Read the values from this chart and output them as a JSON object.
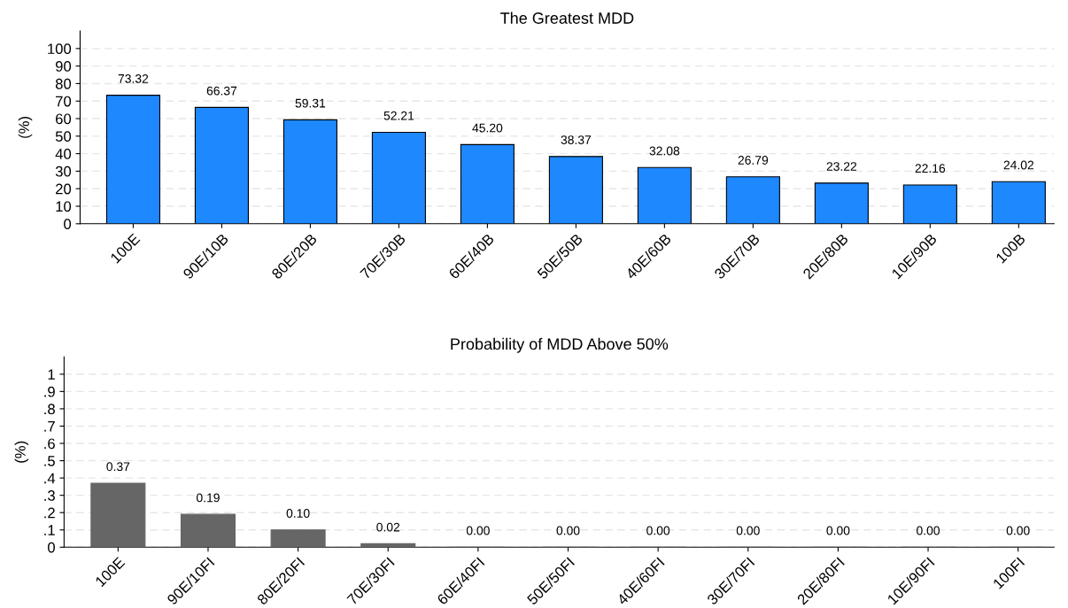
{
  "chart_data": [
    {
      "type": "bar",
      "title": "The Greatest MDD",
      "ylabel": "(%)",
      "categories": [
        "100E",
        "90E/10B",
        "80E/20B",
        "70E/30B",
        "60E/40B",
        "50E/50B",
        "40E/60B",
        "30E/70B",
        "20E/80B",
        "10E/90B",
        "100B"
      ],
      "values": [
        73.32,
        66.37,
        59.31,
        52.21,
        45.2,
        38.37,
        32.08,
        26.79,
        23.22,
        22.16,
        24.02
      ],
      "value_labels": [
        "73.32",
        "66.37",
        "59.31",
        "52.21",
        "45.20",
        "38.37",
        "32.08",
        "26.79",
        "23.22",
        "22.16",
        "24.02"
      ],
      "color": "#1e88ff",
      "ylim": [
        0,
        110
      ],
      "yticks": [
        0,
        10,
        20,
        30,
        40,
        50,
        60,
        70,
        80,
        90,
        100
      ],
      "grid": "y"
    },
    {
      "type": "bar",
      "title": "Probability of MDD Above 50%",
      "ylabel": "(%)",
      "categories": [
        "100E",
        "90E/10FI",
        "80E/20FI",
        "70E/30FI",
        "60E/40FI",
        "50E/50FI",
        "40E/60FI",
        "30E/70FI",
        "20E/80FI",
        "10E/90FI",
        "100FI"
      ],
      "values": [
        0.37,
        0.19,
        0.1,
        0.02,
        0,
        0,
        0,
        0,
        0,
        0,
        0
      ],
      "value_labels": [
        "0.37",
        "0.19",
        "0.10",
        "0.02",
        "0.00",
        "0.00",
        "0.00",
        "0.00",
        "0.00",
        "0.00",
        "0.00"
      ],
      "color": "#666666",
      "ylim": [
        0,
        1.1
      ],
      "yticks": [
        0,
        {
          "value": 0.1,
          "label": ".1"
        },
        {
          "value": 0.2,
          "label": ".2"
        },
        {
          "value": 0.3,
          "label": ".3"
        },
        {
          "value": 0.4,
          "label": ".4"
        },
        {
          "value": 0.5,
          "label": ".5"
        },
        {
          "value": 0.6,
          "label": ".6"
        },
        {
          "value": 0.7,
          "label": ".7"
        },
        {
          "value": 0.8,
          "label": ".8"
        },
        {
          "value": 0.9,
          "label": ".9"
        },
        1
      ],
      "grid": "y"
    }
  ]
}
